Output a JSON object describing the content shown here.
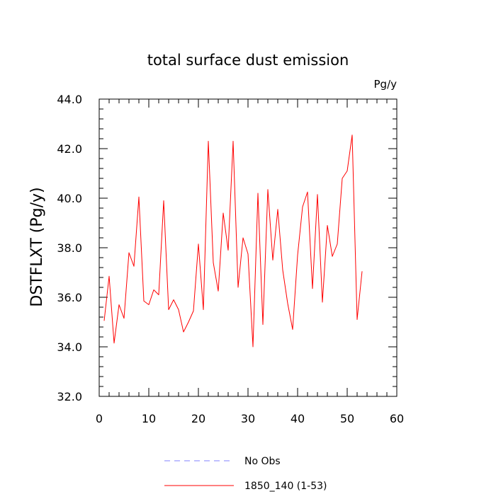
{
  "chart_data": {
    "type": "line",
    "title": "total surface dust emission",
    "units_label": "Pg/y",
    "xlabel": "",
    "ylabel": "DSTFLXT  (Pg/y)",
    "xlim": [
      0,
      60
    ],
    "ylim": [
      32.0,
      44.0
    ],
    "x_ticks": [
      0,
      10,
      20,
      30,
      40,
      50,
      60
    ],
    "x_tick_labels": [
      "0",
      "10",
      "20",
      "30",
      "40",
      "50",
      "60"
    ],
    "y_ticks": [
      32.0,
      34.0,
      36.0,
      38.0,
      40.0,
      42.0,
      44.0
    ],
    "y_tick_labels": [
      "32.0",
      "34.0",
      "36.0",
      "38.0",
      "40.0",
      "42.0",
      "44.0"
    ],
    "grid": false,
    "legend_position": "bottom-center",
    "series": [
      {
        "name": "No Obs",
        "color": "#8080ff",
        "style": "dashed",
        "x": [],
        "y": []
      },
      {
        "name": "1850_140 (1-53)",
        "color": "#ff0000",
        "style": "solid",
        "x": [
          1,
          2,
          3,
          4,
          5,
          6,
          7,
          8,
          9,
          10,
          11,
          12,
          13,
          14,
          15,
          16,
          17,
          18,
          19,
          20,
          21,
          22,
          23,
          24,
          25,
          26,
          27,
          28,
          29,
          30,
          31,
          32,
          33,
          34,
          35,
          36,
          37,
          38,
          39,
          40,
          41,
          42,
          43,
          44,
          45,
          46,
          47,
          48,
          49,
          50,
          51,
          52,
          53
        ],
        "y": [
          35.05,
          36.85,
          34.15,
          35.7,
          35.15,
          37.8,
          37.25,
          40.05,
          35.85,
          35.7,
          36.3,
          36.1,
          39.9,
          35.5,
          35.9,
          35.5,
          34.6,
          35.0,
          35.45,
          38.15,
          35.5,
          42.3,
          37.4,
          36.25,
          39.4,
          37.9,
          42.3,
          36.4,
          38.4,
          37.75,
          34.0,
          40.2,
          34.9,
          40.35,
          37.5,
          39.55,
          37.1,
          35.75,
          34.7,
          37.7,
          39.65,
          40.25,
          36.35,
          40.15,
          35.8,
          38.9,
          37.65,
          38.15,
          40.8,
          41.1,
          42.55,
          35.1,
          37.05
        ]
      }
    ]
  }
}
